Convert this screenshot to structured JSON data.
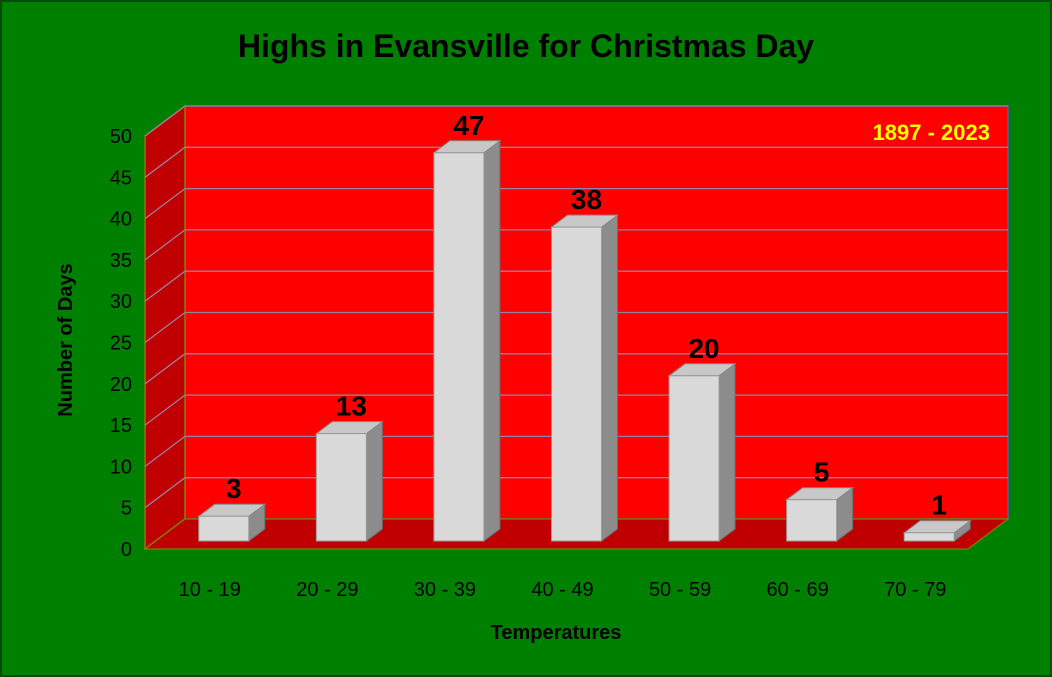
{
  "chart_data": {
    "type": "bar",
    "title": "Highs in Evansville for Christmas Day",
    "annotation": "1897 - 2023",
    "xlabel": "Temperatures",
    "ylabel": "Number of Days",
    "categories": [
      "10 - 19",
      "20 - 29",
      "30 - 39",
      "40 - 49",
      "50 - 59",
      "60 - 69",
      "70 - 79"
    ],
    "values": [
      3,
      13,
      47,
      38,
      20,
      5,
      1
    ],
    "data_labels": [
      "3",
      "13",
      "47",
      "38",
      "20",
      "5",
      "1"
    ],
    "yticks": [
      "0",
      "5",
      "10",
      "15",
      "20",
      "25",
      "30",
      "35",
      "40",
      "45",
      "50"
    ],
    "ylim": [
      0,
      50
    ],
    "grid": true,
    "three_d": true,
    "colors": {
      "background": "#008000",
      "back_wall": "#ff0000",
      "side_wall": "#c00000",
      "floor": "#c00000",
      "bar_front": "#d9d9d9",
      "bar_side": "#8c8c8c",
      "bar_top": "#c8c8c8",
      "annotation": "#ffff00"
    }
  }
}
